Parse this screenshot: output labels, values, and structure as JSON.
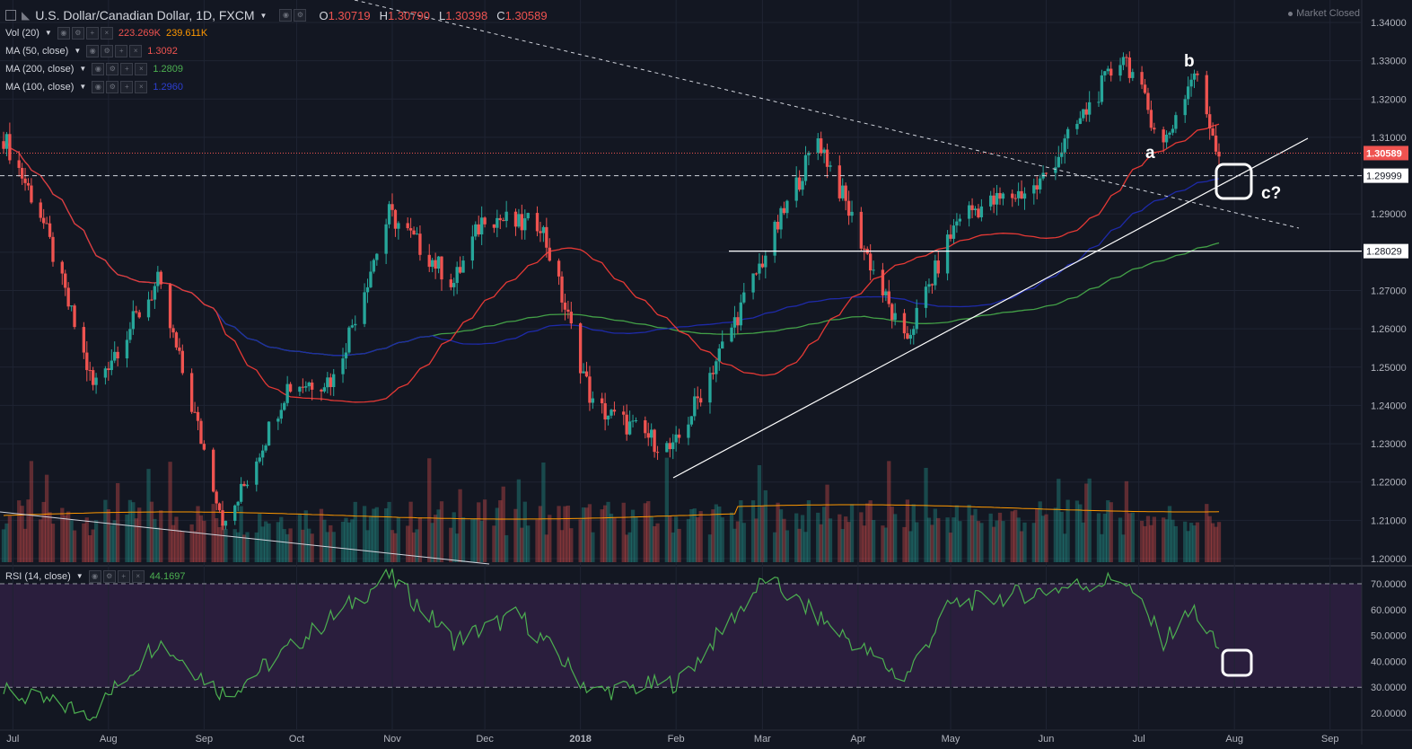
{
  "header": {
    "symbol_title": "U.S. Dollar/Canadian Dollar, 1D, FXCM",
    "ohlc": [
      {
        "label": "O",
        "value": "1.30719"
      },
      {
        "label": "H",
        "value": "1.30790"
      },
      {
        "label": "L",
        "value": "1.30398"
      },
      {
        "label": "C",
        "value": "1.30589"
      }
    ],
    "market_status": "Market Closed"
  },
  "indicators": {
    "vol": {
      "label": "Vol (20)",
      "v1": "223.269K",
      "v2": "239.611K",
      "color1": "#ef5350",
      "color2": "#ff9800"
    },
    "ma50": {
      "label": "MA (50, close)",
      "value": "1.3092",
      "color": "#e53935"
    },
    "ma200": {
      "label": "MA (200, close)",
      "value": "1.2809",
      "color": "#43a047"
    },
    "ma100": {
      "label": "MA (100, close)",
      "value": "1.2960",
      "color": "#1e2aa8"
    },
    "rsi": {
      "label": "RSI (14, close)",
      "value": "44.1697",
      "color": "#4caf50"
    }
  },
  "price_axis": {
    "ticks": [
      "1.34000",
      "1.33000",
      "1.32000",
      "1.31000",
      "1.30000",
      "1.29000",
      "1.28000",
      "1.27000",
      "1.26000",
      "1.25000",
      "1.24000",
      "1.23000",
      "1.22000",
      "1.21000",
      "1.20000"
    ],
    "badges": [
      {
        "text": "1.30589",
        "kind": "last"
      },
      {
        "text": "1.29999",
        "kind": "level"
      },
      {
        "text": "1.28029",
        "kind": "level"
      }
    ]
  },
  "rsi_axis": {
    "ticks": [
      "70.0000",
      "60.0000",
      "50.0000",
      "40.0000",
      "30.0000",
      "20.0000"
    ]
  },
  "time_axis": {
    "labels": [
      "Jul",
      "Aug",
      "Sep",
      "Oct",
      "Nov",
      "Dec",
      "2018",
      "Feb",
      "Mar",
      "Apr",
      "May",
      "Jun",
      "Jul",
      "Aug",
      "Sep"
    ]
  },
  "annotations": {
    "wave_a": "a",
    "wave_b": "b",
    "wave_c": "c?"
  },
  "colors": {
    "background": "#131722",
    "rsi_band": "#2a1e3d",
    "up": "#26a69a",
    "down": "#ef5350",
    "grid": "#1f2433"
  },
  "chart_data": {
    "type": "candlestick",
    "symbol": "USDCAD",
    "timeframe": "1D",
    "x_range": [
      "2017-06-28",
      "2018-07-27"
    ],
    "y_range": [
      1.2,
      1.34
    ],
    "price_path": [
      {
        "date": "2017-06-28",
        "close": 1.31
      },
      {
        "date": "2017-07-10",
        "close": 1.29
      },
      {
        "date": "2017-07-27",
        "close": 1.245
      },
      {
        "date": "2017-08-17",
        "close": 1.272
      },
      {
        "date": "2017-09-08",
        "close": 1.208
      },
      {
        "date": "2017-09-28",
        "close": 1.245
      },
      {
        "date": "2017-10-13",
        "close": 1.247
      },
      {
        "date": "2017-10-31",
        "close": 1.29
      },
      {
        "date": "2017-11-21",
        "close": 1.272
      },
      {
        "date": "2017-12-01",
        "close": 1.29
      },
      {
        "date": "2017-12-12",
        "close": 1.287
      },
      {
        "date": "2017-12-19",
        "close": 1.288
      },
      {
        "date": "2018-01-05",
        "close": 1.24
      },
      {
        "date": "2018-01-31",
        "close": 1.228
      },
      {
        "date": "2018-02-20",
        "close": 1.262
      },
      {
        "date": "2018-03-19",
        "close": 1.31
      },
      {
        "date": "2018-04-16",
        "close": 1.256
      },
      {
        "date": "2018-05-04",
        "close": 1.29
      },
      {
        "date": "2018-05-29",
        "close": 1.297
      },
      {
        "date": "2018-06-26",
        "close": 1.332
      },
      {
        "date": "2018-07-09",
        "close": 1.308
      },
      {
        "date": "2018-07-19",
        "close": 1.327
      },
      {
        "date": "2018-07-27",
        "close": 1.3059
      }
    ],
    "rsi_path": [
      {
        "date": "2017-06-28",
        "value": 28
      },
      {
        "date": "2017-07-27",
        "value": 20
      },
      {
        "date": "2017-08-17",
        "value": 48
      },
      {
        "date": "2017-09-08",
        "value": 27
      },
      {
        "date": "2017-10-31",
        "value": 73
      },
      {
        "date": "2017-11-21",
        "value": 48
      },
      {
        "date": "2017-12-12",
        "value": 58
      },
      {
        "date": "2018-01-05",
        "value": 28
      },
      {
        "date": "2018-02-02",
        "value": 32
      },
      {
        "date": "2018-03-02",
        "value": 72
      },
      {
        "date": "2018-04-16",
        "value": 33
      },
      {
        "date": "2018-05-01",
        "value": 62
      },
      {
        "date": "2018-06-26",
        "value": 72
      },
      {
        "date": "2018-07-09",
        "value": 48
      },
      {
        "date": "2018-07-19",
        "value": 60
      },
      {
        "date": "2018-07-27",
        "value": 44
      }
    ],
    "horizontal_levels": [
      1.30589,
      1.29999,
      1.28029
    ],
    "rsi_levels": [
      70,
      30
    ]
  }
}
